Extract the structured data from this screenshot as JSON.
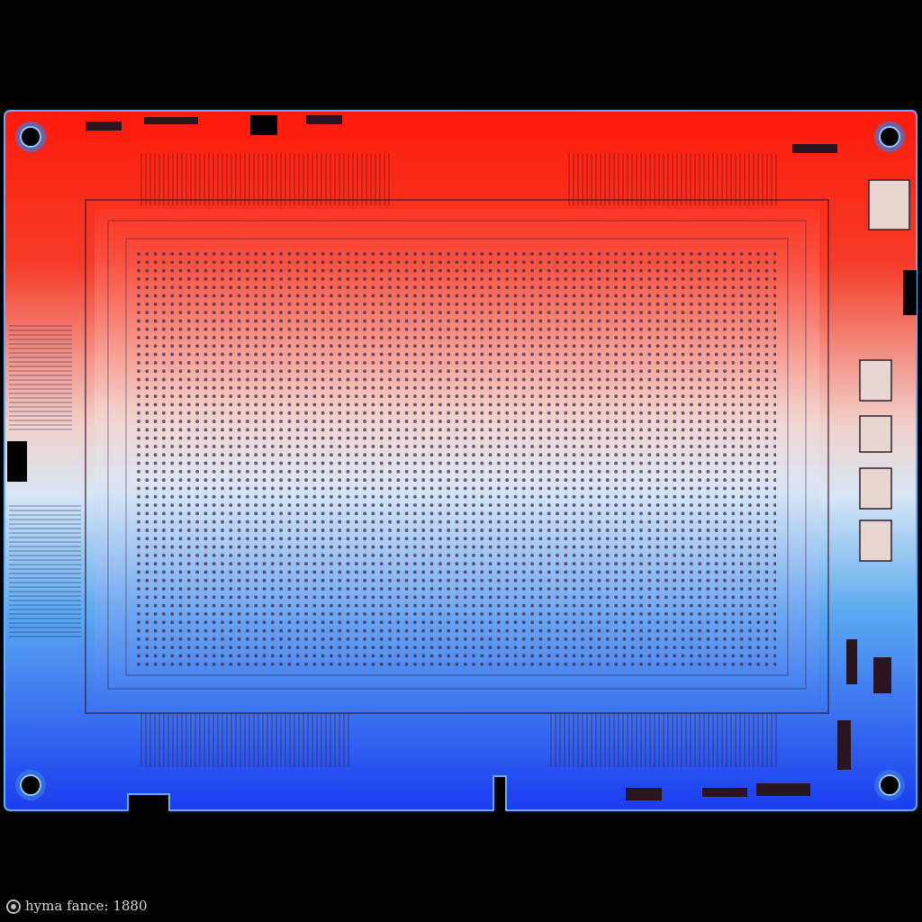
{
  "caption": "hyma fance: 1880"
}
